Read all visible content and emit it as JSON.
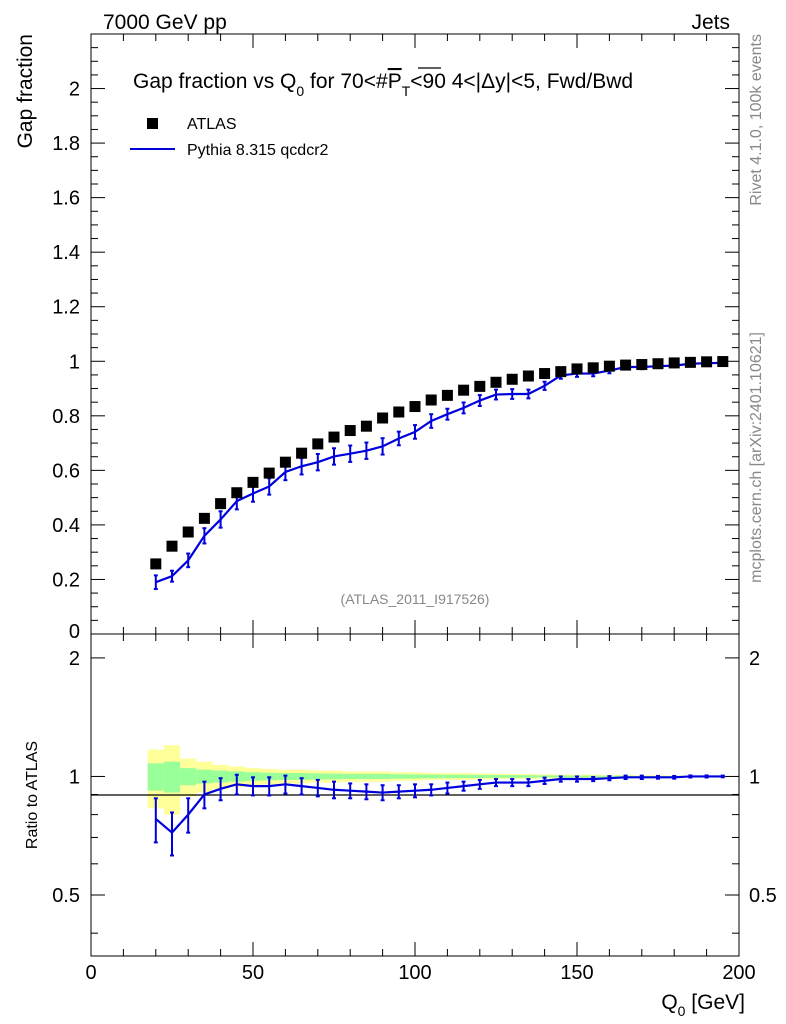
{
  "header": {
    "energy": "7000 GeV pp",
    "category": "Jets"
  },
  "side_labels": {
    "rivet": "Rivet 4.1.0,  100k events",
    "mcplots": "mcplots.cern.ch [arXiv:2401.10621]"
  },
  "colors": {
    "mc": "#0000dd",
    "data": "#000000",
    "band_outer": "#ffff99",
    "band_inner": "#99ff99",
    "watermark": "#888888"
  },
  "chart_data": [
    {
      "type": "scatter",
      "title": "Gap fraction vs Q0 for 70<#PT<90  4<|Δy|<5, Fwd/Bwd",
      "title_parts": {
        "pre": "Gap fraction vs Q",
        "sub0": "0",
        "mid": " for 70<#",
        "P": "P",
        "subT": "T",
        "post": "<90  4<|Δy|<5, Fwd/Bwd"
      },
      "ylabel": "Gap fraction",
      "xlabel": "Q0 [GeV]",
      "xlabel_parts": {
        "pre": "Q",
        "sub": "0",
        "post": " [GeV]"
      },
      "xlim": [
        0,
        200
      ],
      "ylim": [
        0,
        2.2
      ],
      "y_ticks": [
        0.2,
        0.4,
        0.6,
        0.8,
        1,
        1.2,
        1.4,
        1.6,
        1.8,
        2
      ],
      "y_tick_labels": [
        "0.2",
        "0.4",
        "0.6",
        "0.8",
        "1",
        "1.2",
        "1.4",
        "1.6",
        "1.8",
        "2"
      ],
      "y_zero_label": "0",
      "watermark": "(ATLAS_2011_I917526)",
      "legend": [
        "ATLAS",
        "Pythia 8.315 qcdcr2"
      ],
      "legend_position": "top-left",
      "x": [
        20,
        25,
        30,
        35,
        40,
        45,
        50,
        55,
        60,
        65,
        70,
        75,
        80,
        85,
        90,
        95,
        100,
        105,
        110,
        115,
        120,
        125,
        130,
        135,
        140,
        145,
        150,
        155,
        160,
        165,
        170,
        175,
        180,
        185,
        190,
        195
      ],
      "series": [
        {
          "name": "ATLAS",
          "values": [
            0.257,
            0.322,
            0.374,
            0.424,
            0.478,
            0.518,
            0.556,
            0.59,
            0.63,
            0.663,
            0.697,
            0.722,
            0.746,
            0.762,
            0.792,
            0.814,
            0.834,
            0.858,
            0.875,
            0.894,
            0.908,
            0.923,
            0.934,
            0.946,
            0.955,
            0.962,
            0.972,
            0.976,
            0.982,
            0.986,
            0.988,
            0.991,
            0.994,
            0.996,
            0.998,
            0.999
          ]
        },
        {
          "name": "Pythia 8.315 qcdcr2",
          "values": [
            0.19,
            0.212,
            0.27,
            0.36,
            0.42,
            0.487,
            0.515,
            0.541,
            0.594,
            0.615,
            0.63,
            0.651,
            0.661,
            0.672,
            0.688,
            0.717,
            0.741,
            0.781,
            0.806,
            0.829,
            0.856,
            0.878,
            0.88,
            0.88,
            0.91,
            0.948,
            0.955,
            0.955,
            0.966,
            0.979,
            0.979,
            0.982,
            0.984,
            0.991,
            0.993,
            0.994
          ],
          "errors": [
            0.025,
            0.02,
            0.025,
            0.028,
            0.03,
            0.03,
            0.03,
            0.03,
            0.03,
            0.03,
            0.03,
            0.03,
            0.03,
            0.03,
            0.03,
            0.025,
            0.025,
            0.025,
            0.02,
            0.02,
            0.02,
            0.018,
            0.018,
            0.016,
            0.015,
            0.012,
            0.012,
            0.01,
            0.01,
            0.008,
            0.008,
            0.006,
            0.006,
            0.005,
            0.004,
            0.004
          ]
        }
      ]
    },
    {
      "type": "line",
      "ylabel": "Ratio to ATLAS",
      "xlim": [
        0,
        200
      ],
      "ylim": [
        0.35,
        2.3
      ],
      "x_ticks": [
        0,
        50,
        100,
        150,
        200
      ],
      "x_tick_labels": [
        "0",
        "50",
        "100",
        "150",
        "200"
      ],
      "y_ticks": [
        0.5,
        1,
        2
      ],
      "y_tick_labels": [
        "0.5",
        "1",
        "2"
      ],
      "x": [
        20,
        25,
        30,
        35,
        40,
        45,
        50,
        55,
        60,
        65,
        70,
        75,
        80,
        85,
        90,
        95,
        100,
        105,
        110,
        115,
        120,
        125,
        130,
        135,
        140,
        145,
        150,
        155,
        160,
        165,
        170,
        175,
        180,
        185,
        190,
        195
      ],
      "series": [
        {
          "name": "Pythia 8.315 qcdcr2 / ATLAS",
          "values": [
            0.78,
            0.72,
            0.8,
            0.9,
            0.93,
            0.955,
            0.945,
            0.945,
            0.955,
            0.945,
            0.935,
            0.925,
            0.92,
            0.915,
            0.91,
            0.915,
            0.92,
            0.925,
            0.935,
            0.945,
            0.955,
            0.965,
            0.965,
            0.965,
            0.975,
            0.985,
            0.985,
            0.985,
            0.99,
            0.995,
            0.995,
            0.995,
            0.995,
            1.0,
            1.0,
            1.0
          ],
          "errors": [
            0.1,
            0.09,
            0.08,
            0.07,
            0.06,
            0.055,
            0.05,
            0.05,
            0.05,
            0.045,
            0.045,
            0.045,
            0.04,
            0.04,
            0.04,
            0.035,
            0.035,
            0.03,
            0.03,
            0.025,
            0.025,
            0.02,
            0.02,
            0.02,
            0.018,
            0.015,
            0.015,
            0.012,
            0.012,
            0.01,
            0.01,
            0.008,
            0.008,
            0.006,
            0.006,
            0.005
          ]
        }
      ],
      "band_edges": [
        17.5,
        22.5,
        27.5,
        32.5,
        37.5,
        42.5,
        47.5,
        52.5,
        57.5,
        62.5,
        67.5,
        72.5,
        77.5,
        82.5,
        87.5,
        92.5,
        97.5,
        102.5,
        107.5,
        112.5,
        117.5,
        122.5,
        127.5,
        132.5,
        137.5,
        142.5,
        147.5,
        152.5,
        157.5,
        162.5,
        167.5,
        172.5,
        177.5,
        182.5,
        187.5,
        192.5,
        197.5
      ],
      "band_outer": [
        0.17,
        0.2,
        0.11,
        0.09,
        0.07,
        0.06,
        0.05,
        0.045,
        0.04,
        0.04,
        0.035,
        0.035,
        0.03,
        0.03,
        0.03,
        0.025,
        0.025,
        0.02,
        0.02,
        0.02,
        0.018,
        0.016,
        0.015,
        0.014,
        0.012,
        0.011,
        0.01,
        0.01,
        0.009,
        0.008,
        0.007,
        0.006,
        0.005,
        0.004,
        0.003,
        0.003
      ],
      "band_inner": [
        0.08,
        0.09,
        0.05,
        0.04,
        0.035,
        0.03,
        0.025,
        0.022,
        0.02,
        0.02,
        0.018,
        0.017,
        0.015,
        0.015,
        0.015,
        0.013,
        0.012,
        0.011,
        0.01,
        0.01,
        0.009,
        0.008,
        0.008,
        0.007,
        0.006,
        0.006,
        0.005,
        0.005,
        0.004,
        0.004,
        0.003,
        0.003,
        0.003,
        0.002,
        0.002,
        0.002
      ]
    }
  ]
}
